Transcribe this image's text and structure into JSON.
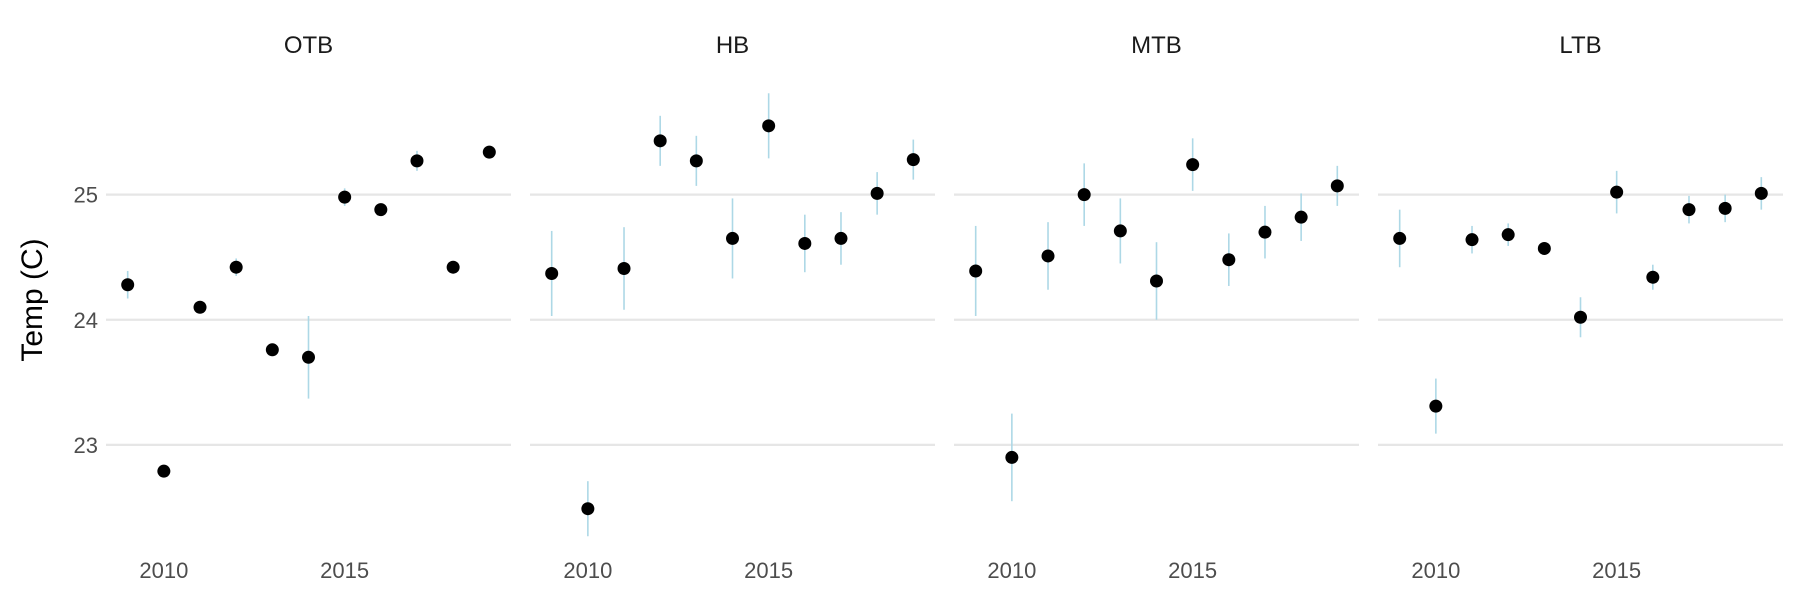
{
  "chart_data": {
    "type": "scatter",
    "ylabel": "Temp (C)",
    "xlabel": "",
    "ylim": [
      22.2,
      26.1
    ],
    "xlim": [
      2008.4,
      2019.6
    ],
    "yticks": [
      23,
      24,
      25
    ],
    "xticks": [
      2010,
      2015
    ],
    "grid": true,
    "colors": {
      "point": "#000000",
      "errorbar": "#add8e6",
      "grid": "#e6e6e6"
    },
    "panels": [
      {
        "title": "OTB",
        "points": [
          {
            "x": 2009,
            "y": 24.28,
            "lo": 24.17,
            "hi": 24.39
          },
          {
            "x": 2010,
            "y": 22.79,
            "lo": 22.74,
            "hi": 22.84
          },
          {
            "x": 2011,
            "y": 24.1,
            "lo": 24.05,
            "hi": 24.15
          },
          {
            "x": 2012,
            "y": 24.42,
            "lo": 24.35,
            "hi": 24.49
          },
          {
            "x": 2013,
            "y": 23.76,
            "lo": 23.71,
            "hi": 23.81
          },
          {
            "x": 2014,
            "y": 23.7,
            "lo": 23.37,
            "hi": 24.03
          },
          {
            "x": 2015,
            "y": 24.98,
            "lo": 24.91,
            "hi": 25.05
          },
          {
            "x": 2016,
            "y": 24.88,
            "lo": 24.83,
            "hi": 24.93
          },
          {
            "x": 2017,
            "y": 25.27,
            "lo": 25.19,
            "hi": 25.35
          },
          {
            "x": 2018,
            "y": 24.42,
            "lo": 24.37,
            "hi": 24.47
          },
          {
            "x": 2019,
            "y": 25.34,
            "lo": 25.29,
            "hi": 25.39
          }
        ]
      },
      {
        "title": "HB",
        "points": [
          {
            "x": 2009,
            "y": 24.37,
            "lo": 24.03,
            "hi": 24.71
          },
          {
            "x": 2010,
            "y": 22.49,
            "lo": 22.27,
            "hi": 22.71
          },
          {
            "x": 2011,
            "y": 24.41,
            "lo": 24.08,
            "hi": 24.74
          },
          {
            "x": 2012,
            "y": 25.43,
            "lo": 25.23,
            "hi": 25.63
          },
          {
            "x": 2013,
            "y": 25.27,
            "lo": 25.07,
            "hi": 25.47
          },
          {
            "x": 2014,
            "y": 24.65,
            "lo": 24.33,
            "hi": 24.97
          },
          {
            "x": 2015,
            "y": 25.55,
            "lo": 25.29,
            "hi": 25.81
          },
          {
            "x": 2016,
            "y": 24.61,
            "lo": 24.38,
            "hi": 24.84
          },
          {
            "x": 2017,
            "y": 24.65,
            "lo": 24.44,
            "hi": 24.86
          },
          {
            "x": 2018,
            "y": 25.01,
            "lo": 24.84,
            "hi": 25.18
          },
          {
            "x": 2019,
            "y": 25.28,
            "lo": 25.12,
            "hi": 25.44
          }
        ]
      },
      {
        "title": "MTB",
        "points": [
          {
            "x": 2009,
            "y": 24.39,
            "lo": 24.03,
            "hi": 24.75
          },
          {
            "x": 2010,
            "y": 22.9,
            "lo": 22.55,
            "hi": 23.25
          },
          {
            "x": 2011,
            "y": 24.51,
            "lo": 24.24,
            "hi": 24.78
          },
          {
            "x": 2012,
            "y": 25.0,
            "lo": 24.75,
            "hi": 25.25
          },
          {
            "x": 2013,
            "y": 24.71,
            "lo": 24.45,
            "hi": 24.97
          },
          {
            "x": 2014,
            "y": 24.31,
            "lo": 24.0,
            "hi": 24.62
          },
          {
            "x": 2015,
            "y": 25.24,
            "lo": 25.03,
            "hi": 25.45
          },
          {
            "x": 2016,
            "y": 24.48,
            "lo": 24.27,
            "hi": 24.69
          },
          {
            "x": 2017,
            "y": 24.7,
            "lo": 24.49,
            "hi": 24.91
          },
          {
            "x": 2018,
            "y": 24.82,
            "lo": 24.63,
            "hi": 25.01
          },
          {
            "x": 2019,
            "y": 25.07,
            "lo": 24.91,
            "hi": 25.23
          }
        ]
      },
      {
        "title": "LTB",
        "points": [
          {
            "x": 2009,
            "y": 24.65,
            "lo": 24.42,
            "hi": 24.88
          },
          {
            "x": 2010,
            "y": 23.31,
            "lo": 23.09,
            "hi": 23.53
          },
          {
            "x": 2011,
            "y": 24.64,
            "lo": 24.53,
            "hi": 24.75
          },
          {
            "x": 2012,
            "y": 24.68,
            "lo": 24.59,
            "hi": 24.77
          },
          {
            "x": 2013,
            "y": 24.57,
            "lo": 24.52,
            "hi": 24.62
          },
          {
            "x": 2014,
            "y": 24.02,
            "lo": 23.86,
            "hi": 24.18
          },
          {
            "x": 2015,
            "y": 25.02,
            "lo": 24.85,
            "hi": 25.19
          },
          {
            "x": 2016,
            "y": 24.34,
            "lo": 24.24,
            "hi": 24.44
          },
          {
            "x": 2017,
            "y": 24.88,
            "lo": 24.77,
            "hi": 24.99
          },
          {
            "x": 2018,
            "y": 24.89,
            "lo": 24.78,
            "hi": 25.0
          },
          {
            "x": 2019,
            "y": 25.01,
            "lo": 24.88,
            "hi": 25.14
          }
        ]
      }
    ]
  }
}
